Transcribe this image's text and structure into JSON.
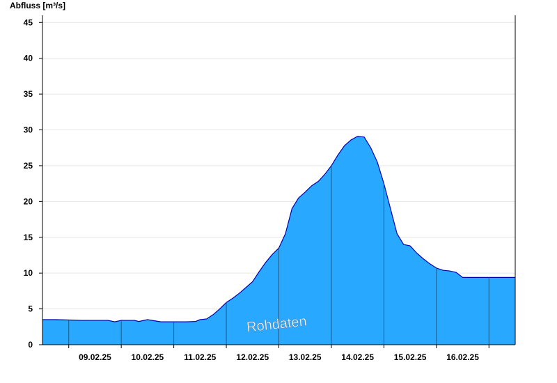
{
  "chart_data": {
    "type": "area",
    "title": "",
    "ylabel": "Abfluss [m³/s]",
    "xlabel": "",
    "ylim": [
      0,
      46
    ],
    "yticks": [
      0,
      5,
      10,
      15,
      20,
      25,
      30,
      35,
      40,
      45
    ],
    "xlim": [
      "08.02.25 12:00",
      "17.02.25 12:00"
    ],
    "xtick_labels": [
      "09.02.25",
      "10.02.25",
      "11.02.25",
      "12.02.25",
      "13.02.25",
      "14.02.25",
      "15.02.25",
      "16.02.25"
    ],
    "grid": true,
    "fill_color": "#29a8ff",
    "line_color": "#0000b0",
    "annotation": "Rohdaten",
    "series": [
      {
        "x": [
          "08.02.25 12:00",
          "08.02.25 18:00",
          "09.02.25 00:00",
          "09.02.25 06:00",
          "09.02.25 12:00",
          "09.02.25 18:00",
          "09.02.25 21:00",
          "10.02.25 00:00",
          "10.02.25 06:00",
          "10.02.25 08:00",
          "10.02.25 12:00",
          "10.02.25 18:00",
          "11.02.25 00:00",
          "11.02.25 06:00",
          "11.02.25 10:00",
          "11.02.25 12:00",
          "11.02.25 15:00",
          "11.02.25 18:00",
          "11.02.25 21:00",
          "12.02.25 00:00",
          "12.02.25 03:00",
          "12.02.25 06:00",
          "12.02.25 09:00",
          "12.02.25 12:00",
          "12.02.25 15:00",
          "12.02.25 18:00",
          "12.02.25 21:00",
          "13.02.25 00:00",
          "13.02.25 03:00",
          "13.02.25 06:00",
          "13.02.25 09:00",
          "13.02.25 12:00",
          "13.02.25 15:00",
          "13.02.25 18:00",
          "13.02.25 21:00",
          "14.02.25 00:00",
          "14.02.25 03:00",
          "14.02.25 06:00",
          "14.02.25 09:00",
          "14.02.25 12:00",
          "14.02.25 15:00",
          "14.02.25 18:00",
          "14.02.25 21:00",
          "15.02.25 00:00",
          "15.02.25 03:00",
          "15.02.25 06:00",
          "15.02.25 09:00",
          "15.02.25 12:00",
          "15.02.25 15:00",
          "15.02.25 18:00",
          "15.02.25 21:00",
          "16.02.25 00:00",
          "16.02.25 03:00",
          "16.02.25 06:00",
          "16.02.25 09:00",
          "16.02.25 12:00",
          "16.02.25 15:00",
          "16.02.25 18:00",
          "16.02.25 21:00",
          "17.02.25 00:00",
          "17.02.25 06:00",
          "17.02.25 12:00"
        ],
        "values": [
          3.5,
          3.5,
          3.45,
          3.4,
          3.4,
          3.4,
          3.2,
          3.4,
          3.4,
          3.25,
          3.5,
          3.2,
          3.2,
          3.2,
          3.25,
          3.5,
          3.6,
          4.2,
          5.0,
          5.9,
          6.5,
          7.2,
          8.0,
          8.8,
          10.2,
          11.5,
          12.6,
          13.5,
          15.5,
          19.0,
          20.5,
          21.3,
          22.2,
          22.8,
          23.8,
          25.0,
          26.5,
          27.8,
          28.6,
          29.1,
          29.0,
          27.5,
          25.5,
          22.5,
          19.0,
          15.5,
          14.0,
          13.8,
          12.8,
          12.0,
          11.3,
          10.7,
          10.4,
          10.3,
          10.1,
          9.4,
          9.4,
          9.4,
          9.4,
          9.4,
          9.4,
          9.4
        ]
      }
    ]
  }
}
